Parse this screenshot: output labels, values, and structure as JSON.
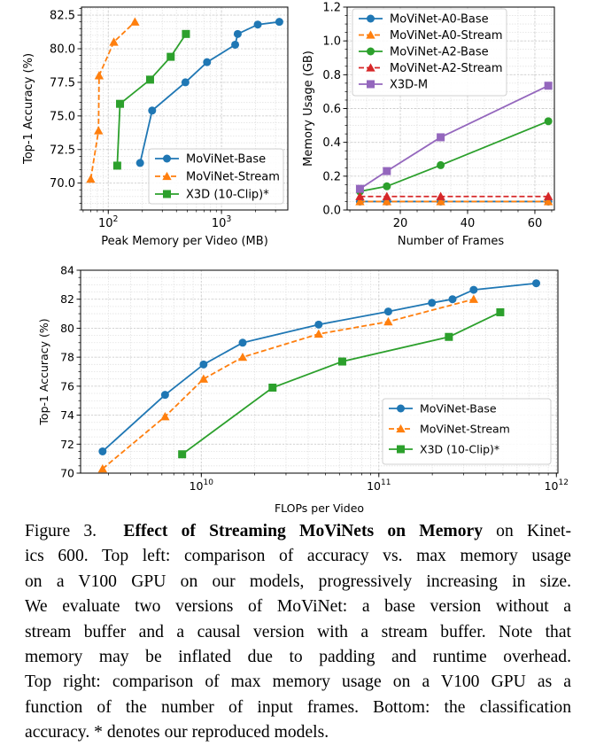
{
  "chart_data": [
    {
      "type": "line",
      "title": "",
      "xlabel": "Peak Memory per Video (MB)",
      "ylabel": "Top-1 Accuracy (%)",
      "xscale": "log",
      "xlim": [
        58,
        3850
      ],
      "ylim": [
        68.0,
        83.1
      ],
      "xticks": [
        100,
        1000
      ],
      "xtick_labels": [
        "10^2",
        "10^3"
      ],
      "yticks": [
        70.0,
        72.5,
        75.0,
        77.5,
        80.0,
        82.5
      ],
      "ytick_labels": [
        "70.0",
        "72.5",
        "75.0",
        "77.5",
        "80.0",
        "82.5"
      ],
      "yminor_step": 0.5,
      "grid": true,
      "legend": "lower-right",
      "series": [
        {
          "name": "MoViNet-Base",
          "color": "#1f77b4",
          "marker": "circle",
          "dashed": false,
          "x": [
            191,
            244,
            480,
            745,
            1320,
            1390,
            2090,
            3240
          ],
          "y": [
            71.5,
            75.4,
            77.5,
            79.0,
            80.3,
            81.1,
            81.8,
            82.0
          ]
        },
        {
          "name": "MoViNet-Stream",
          "color": "#ff7f0e",
          "marker": "triangle",
          "dashed": true,
          "x": [
            70,
            82,
            83,
            112,
            172
          ],
          "y": [
            70.3,
            73.9,
            78.0,
            80.5,
            82.0
          ]
        },
        {
          "name": "X3D (10-Clip)*",
          "color": "#2ca02c",
          "marker": "square",
          "dashed": false,
          "x": [
            120,
            127,
            234,
            356,
            485
          ],
          "y": [
            71.3,
            75.9,
            77.7,
            79.4,
            81.1
          ]
        }
      ]
    },
    {
      "type": "line",
      "title": "",
      "xlabel": "Number of Frames",
      "ylabel": "Memory Usage (GB)",
      "xscale": "linear",
      "xlim": [
        4.2,
        65.8
      ],
      "ylim": [
        0.0,
        1.2
      ],
      "xticks": [
        20,
        40,
        60
      ],
      "xtick_labels": [
        "20",
        "40",
        "60"
      ],
      "xminor_step": 5,
      "yticks": [
        0.0,
        0.2,
        0.4,
        0.6,
        0.8,
        1.0,
        1.2
      ],
      "ytick_labels": [
        "0.0",
        "0.2",
        "0.4",
        "0.6",
        "0.8",
        "1.0",
        "1.2"
      ],
      "yminor_step": 0.05,
      "grid": true,
      "legend": "upper-left",
      "series": [
        {
          "name": "MoViNet-A0-Base",
          "color": "#1f77b4",
          "marker": "circle",
          "dashed": false,
          "x": [
            8,
            16,
            32,
            64
          ],
          "y": [
            0.05,
            0.05,
            0.05,
            0.05
          ]
        },
        {
          "name": "MoViNet-A0-Stream",
          "color": "#ff7f0e",
          "marker": "triangle",
          "dashed": true,
          "x": [
            8,
            16,
            32,
            64
          ],
          "y": [
            0.05,
            0.05,
            0.05,
            0.05
          ]
        },
        {
          "name": "MoViNet-A2-Base",
          "color": "#2ca02c",
          "marker": "circle",
          "dashed": false,
          "x": [
            8,
            16,
            32,
            64
          ],
          "y": [
            0.11,
            0.14,
            0.265,
            0.525
          ]
        },
        {
          "name": "MoViNet-A2-Stream",
          "color": "#d62728",
          "marker": "triangle",
          "dashed": true,
          "x": [
            8,
            16,
            32,
            64
          ],
          "y": [
            0.08,
            0.08,
            0.08,
            0.08
          ]
        },
        {
          "name": "X3D-M",
          "color": "#9467bd",
          "marker": "square",
          "dashed": false,
          "x": [
            8,
            16,
            32,
            64
          ],
          "y": [
            0.125,
            0.23,
            0.43,
            0.735
          ]
        }
      ]
    },
    {
      "type": "line",
      "title": "",
      "xlabel": "FLOPs per Video",
      "ylabel": "Top-1 Accuracy (%)",
      "xscale": "log",
      "xlim": [
        2090000000.0,
        1020000000000.0
      ],
      "ylim": [
        70,
        84
      ],
      "xticks": [
        10000000000.0,
        100000000000.0,
        1000000000000.0
      ],
      "xtick_labels": [
        "10^10",
        "10^11",
        "10^12"
      ],
      "yticks": [
        70,
        72,
        74,
        76,
        78,
        80,
        82,
        84
      ],
      "ytick_labels": [
        "70",
        "72",
        "74",
        "76",
        "78",
        "80",
        "82",
        "84"
      ],
      "yminor_step": 0.5,
      "grid": true,
      "legend": "lower-right",
      "series": [
        {
          "name": "MoViNet-Base",
          "color": "#1f77b4",
          "marker": "circle",
          "dashed": false,
          "x": [
            2780000000.0,
            6250000000.0,
            10300000000.0,
            17100000000.0,
            45800000000.0,
            113000000000.0,
            199000000000.0,
            260000000000.0,
            342000000000.0,
            770000000000.0
          ],
          "y": [
            71.5,
            75.4,
            77.5,
            79.0,
            80.25,
            81.15,
            81.75,
            82.0,
            82.65,
            83.1
          ]
        },
        {
          "name": "MoViNet-Stream",
          "color": "#ff7f0e",
          "marker": "triangle",
          "dashed": true,
          "x": [
            2780000000.0,
            6250000000.0,
            10300000000.0,
            17100000000.0,
            45800000000.0,
            113000000000.0,
            342000000000.0
          ],
          "y": [
            70.3,
            73.9,
            76.5,
            78.0,
            79.6,
            80.45,
            82.0
          ]
        },
        {
          "name": "X3D (10-Clip)*",
          "color": "#2ca02c",
          "marker": "square",
          "dashed": false,
          "x": [
            7800000000.0,
            25200000000.0,
            62200000000.0,
            248000000000.0,
            483000000000.0
          ],
          "y": [
            71.3,
            75.9,
            77.7,
            79.4,
            81.1
          ]
        }
      ]
    }
  ],
  "caption": {
    "label": "Figure 3.",
    "bold": "Effect of Streaming MoViNets on Memory",
    "lines": [
      " on Kinet-",
      "ics 600. Top left: comparison of accuracy vs. max memory usage",
      "on a V100 GPU on our models, progressively increasing in size.",
      "We evaluate two versions of MoViNet: a base version without a",
      "stream buffer and a causal version with a stream buffer. Note that",
      "memory may be inflated due to padding and runtime overhead.",
      "Top right: comparison of max memory usage on a V100 GPU as a",
      "function of the number of input frames. Bottom: the classification",
      "accuracy. * denotes our reproduced models."
    ]
  }
}
